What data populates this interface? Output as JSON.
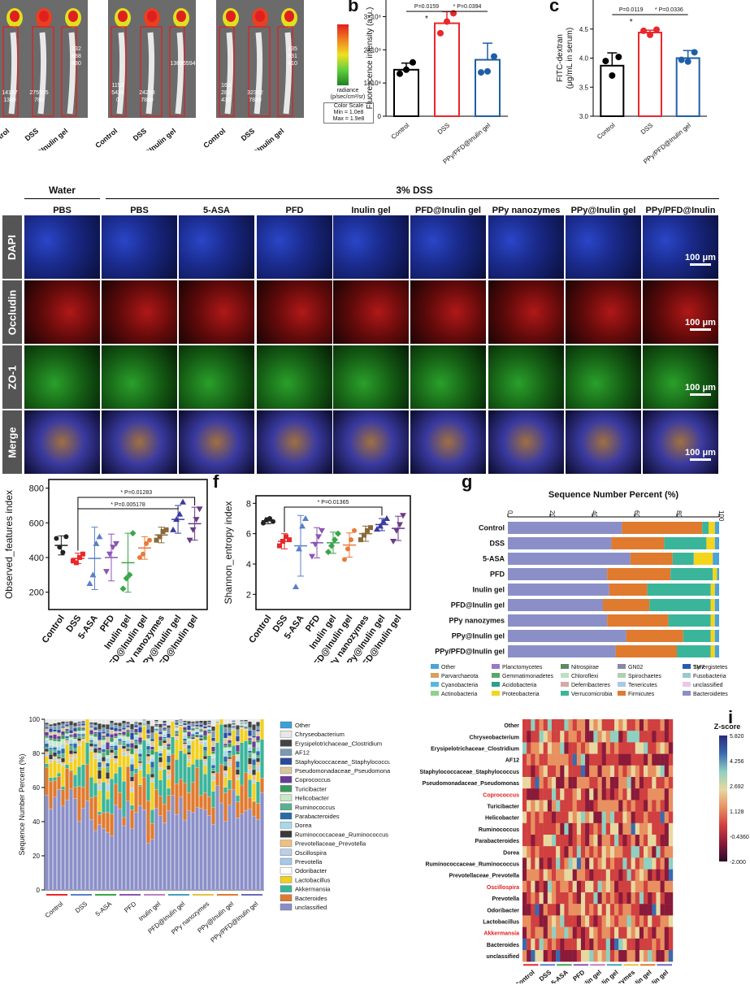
{
  "panel_a": {
    "images": [
      {
        "groups": [
          "Control",
          "DSS",
          "PPy/PFD@Inulin gel"
        ],
        "values": [
          "14197\n1380",
          "275555\n780",
          "232\n888\n880"
        ]
      },
      {
        "groups": [
          "Control",
          "DSS",
          "PPy/PFD@Inulin gel"
        ],
        "values": [
          "1152\n5426\n0",
          "24258\n7860",
          "136965940"
        ]
      },
      {
        "groups": [
          "Control",
          "DSS",
          "PPy/PFD@Inulin gel"
        ],
        "values": [
          "163\n282\n430",
          "32302\n7810",
          "135\n831\n410"
        ]
      }
    ],
    "colorbar": {
      "title": "radiance\n(p/sec/cm²/sr)",
      "scale_label": "Color Scale",
      "min": "Min = 1.0e8",
      "max": "Max = 1.9e8"
    }
  },
  "panel_labels": {
    "b": "b",
    "c": "c",
    "f": "f",
    "g": "g",
    "i": "i"
  },
  "chart_data": [
    {
      "id": "b",
      "type": "bar",
      "ylabel": "Fluorescence intensity (a.u.)",
      "categories": [
        "Control",
        "DSS",
        "PPy/PFD@Inulin gel"
      ],
      "values": [
        1.4,
        2.8,
        1.7
      ],
      "points": [
        [
          1.28,
          1.4,
          1.62
        ],
        [
          2.5,
          2.85,
          3.1
        ],
        [
          1.32,
          1.35,
          1.8
        ]
      ],
      "errors": [
        0.2,
        0.35,
        0.5
      ],
      "ylim": [
        0,
        3.5
      ],
      "yticks": [
        0,
        1,
        2,
        3
      ],
      "yticklabels": [
        "0",
        "1×10⁸",
        "2×10⁸",
        "3×10⁸"
      ],
      "colors": [
        "#000000",
        "#e8282b",
        "#1e5ea8"
      ],
      "annotations": [
        "P=0.0159",
        "*",
        "* P=0.0394"
      ]
    },
    {
      "id": "c",
      "type": "bar",
      "ylabel": "FITC-dextran\n(μg/mL in serum)",
      "categories": [
        "Control",
        "DSS",
        "PPy/PFD@Inulin gel"
      ],
      "values": [
        3.87,
        4.44,
        4.0
      ],
      "points": [
        [
          3.95,
          3.7,
          4.02
        ],
        [
          4.47,
          4.4,
          4.49
        ],
        [
          3.97,
          3.94,
          4.1
        ]
      ],
      "errors": [
        0.22,
        0.04,
        0.13
      ],
      "ylim": [
        3.0,
        5.0
      ],
      "yticks": [
        3.0,
        3.5,
        4.0,
        4.5
      ],
      "yticklabels": [
        "3.0",
        "3.5",
        "4.0",
        "4.5"
      ],
      "colors": [
        "#000000",
        "#e8282b",
        "#1e5ea8"
      ],
      "annotations": [
        "P=0.0119",
        "*",
        "* P=0.0336"
      ]
    },
    {
      "id": "e",
      "type": "scatter",
      "ylabel": "Observed_features index",
      "categories": [
        "Control",
        "DSS",
        "5-ASA",
        "PFD",
        "Inulin gel",
        "PFD@Inulin gel",
        "PPy nanozymes",
        "PPy@Inulin gel",
        "PPy/PFD@Inulin gel"
      ],
      "means": [
        470,
        395,
        395,
        400,
        370,
        455,
        530,
        620,
        595
      ],
      "sds": [
        55,
        30,
        180,
        135,
        170,
        65,
        45,
        80,
        95
      ],
      "points": [
        [
          510,
          460,
          430,
          520
        ],
        [
          380,
          370,
          400,
          420
        ],
        [
          250,
          300,
          480,
          520
        ],
        [
          320,
          420,
          460,
          480
        ],
        [
          220,
          280,
          300,
          540
        ],
        [
          400,
          420,
          480,
          500
        ],
        [
          500,
          520,
          550,
          560
        ],
        [
          560,
          620,
          650,
          720
        ],
        [
          500,
          560,
          620,
          680
        ]
      ],
      "colors": [
        "#222222",
        "#e8282b",
        "#5a7fc7",
        "#8a55b5",
        "#3aa64a",
        "#e87a3a",
        "#8a6a3a",
        "#3a3aa0",
        "#6a3a8a"
      ],
      "ylim": [
        100,
        850
      ],
      "yticks": [
        200,
        400,
        600,
        800
      ],
      "annotations": [
        "* P=0.01283",
        "* P=0.005178"
      ]
    },
    {
      "id": "f",
      "type": "scatter",
      "ylabel": "Shannon_entropy index",
      "categories": [
        "Control",
        "DSS",
        "5-ASA",
        "PFD",
        "Inulin gel",
        "PFD@Inulin gel",
        "PPy nanozymes",
        "PPy@Inulin gel",
        "PPy/PFD@Inulin gel"
      ],
      "means": [
        6.85,
        5.5,
        5.2,
        5.4,
        5.4,
        5.25,
        6.0,
        6.6,
        6.35
      ],
      "sds": [
        0.2,
        0.5,
        2.0,
        1.0,
        0.7,
        0.8,
        0.5,
        0.4,
        0.8
      ],
      "points": [
        [
          6.7,
          6.9,
          7.0,
          6.8
        ],
        [
          5.2,
          5.5,
          5.8,
          5.6
        ],
        [
          2.5,
          5.0,
          6.5,
          7.0
        ],
        [
          4.5,
          5.3,
          5.8,
          6.2
        ],
        [
          4.8,
          5.2,
          5.6,
          6.0
        ],
        [
          4.3,
          5.0,
          5.6,
          6.2
        ],
        [
          5.6,
          5.9,
          6.2,
          6.4
        ],
        [
          6.3,
          6.5,
          6.8,
          7.0
        ],
        [
          5.5,
          6.2,
          6.6,
          7.2
        ]
      ],
      "colors": [
        "#222222",
        "#e8282b",
        "#5a7fc7",
        "#8a55b5",
        "#3aa64a",
        "#e87a3a",
        "#8a6a3a",
        "#3a3aa0",
        "#6a3a8a"
      ],
      "ylim": [
        1,
        8.5
      ],
      "yticks": [
        2,
        4,
        6,
        8
      ],
      "annotations": [
        "* P=0.01365"
      ]
    },
    {
      "id": "g",
      "type": "bar",
      "orientation": "horizontal-stacked",
      "title": "Sequence Number Percent (%)",
      "categories": [
        "Control",
        "DSS",
        "5-ASA",
        "PFD",
        "Inulin gel",
        "PFD@Inulin gel",
        "PPy nanozymes",
        "PPy@Inulin gel",
        "PPy/PFD@Inulin gel"
      ],
      "xticks": [
        "0",
        "20",
        "40",
        "60",
        "80",
        "100"
      ],
      "series": [
        {
          "name": "Bacteroidetes",
          "color": "#8b8fc8",
          "values": [
            54,
            49,
            58,
            47,
            48,
            45,
            47,
            56,
            51
          ]
        },
        {
          "name": "Firmicutes",
          "color": "#e07a2e",
          "values": [
            38,
            25,
            20,
            30,
            18,
            22,
            29,
            27,
            29
          ]
        },
        {
          "name": "Verrucomicrobia",
          "color": "#3ab59a",
          "values": [
            3,
            20,
            10,
            20,
            30,
            29,
            20,
            13,
            16
          ]
        },
        {
          "name": "Proteobacteria",
          "color": "#f5d41c",
          "values": [
            3,
            4,
            9,
            2,
            2,
            2,
            2,
            2,
            2
          ]
        },
        {
          "name": "Other",
          "color": "#4aa4d8",
          "values": [
            2,
            2,
            3,
            1,
            2,
            2,
            2,
            2,
            2
          ]
        }
      ],
      "legend": [
        "Other",
        "Parvarchaeota",
        "Cyanobacteria",
        "Actinobacteria",
        "Planctomycetes",
        "Gemmatimonadetes",
        "Acidobacteria",
        "Proteobacteria",
        "Nitrospirae",
        "Chloroflexi",
        "Deferribacteres",
        "Verrucomicrobia",
        "GN02",
        "Spirochaetes",
        "Tenericutes",
        "Firmicutes",
        "Synergistetes",
        "Fusobacteria",
        "unclassified",
        "Bacteroidetes",
        "TM7"
      ],
      "legend_colors": [
        "#4aa4d8",
        "#d4a060",
        "#56b8e0",
        "#8fd08a",
        "#9a78c8",
        "#58a86a",
        "#2f9f8f",
        "#f5d41c",
        "#5f8a5f",
        "#bde0c0",
        "#d8a8a8",
        "#3ab59a",
        "#8888a8",
        "#b0d0b0",
        "#a8c8e8",
        "#e07a2e",
        "#3a58a8",
        "#9ac8d0",
        "#e8c8e8",
        "#8b8fc8",
        "#2a5ab0"
      ]
    },
    {
      "id": "h",
      "type": "bar",
      "orientation": "vertical-stacked",
      "ylabel": "Sequence Number Percent (%)",
      "categories": [
        "Control",
        "DSS",
        "5-ASA",
        "PFD",
        "Inulin gel",
        "PFD@Inulin gel",
        "PPy nanozymes",
        "PPy@Inulin gel",
        "PPy/PFD@Inulin gel"
      ],
      "yticks": [
        "0",
        "20",
        "40",
        "60",
        "80",
        "100"
      ],
      "series_names": [
        "Other",
        "Chryseobacterium",
        "Erysipelotrichaceae_Clostridium",
        "AF12",
        "Staphylococcaceae_Staphylococcus",
        "Pseudomonadaceae_Pseudomonas",
        "Coprococcus",
        "Turicibacter",
        "Helicobacter",
        "Ruminococcus",
        "Parabacteroides",
        "Dorea",
        "Ruminococcaceae_Ruminococcus",
        "Prevotellaceae_Prevotella",
        "Oscillospira",
        "Prevotella",
        "Odoribacter",
        "Lactobacillus",
        "Akkermansia",
        "Bacteroides",
        "unclassified"
      ],
      "series_colors": [
        "#3aa0d8",
        "#e8e8e8",
        "#444444",
        "#7a9ab0",
        "#2a4aa0",
        "#d8c8a0",
        "#6a3a9a",
        "#3a9a5a",
        "#c8e8c8",
        "#5ab090",
        "#2a6aa8",
        "#a8d8e8",
        "#3a3a3a",
        "#f0c080",
        "#b8d0e8",
        "#a8c8e8",
        "#ffffff",
        "#f2d020",
        "#3ab59a",
        "#e07a2e",
        "#8b8fc8"
      ],
      "unclassified_means": [
        55,
        50,
        40,
        45,
        38,
        48,
        44,
        52,
        50
      ]
    },
    {
      "id": "i",
      "type": "heatmap",
      "colorbar_title": "Z-score",
      "rows": [
        "Other",
        "Chryseobacterium",
        "Erysipelotrichaceae_Clostridium",
        "AF12",
        "Staphylococcaceae_Staphylococcus",
        "Pseudomonadaceae_Pseudomonas",
        "Coprococcus",
        "Turicibacter",
        "Helicobacter",
        "Ruminococcus",
        "Parabacteroides",
        "Dorea",
        "Ruminococcaceae_Ruminococcus",
        "Prevotellaceae_Prevotella",
        "Oscillospira",
        "Prevotella",
        "Odoribacter",
        "Lactobacillus",
        "Akkermansia",
        "Bacteroides",
        "unclassified"
      ],
      "highlight_rows": [
        "Coprococcus",
        "Oscillospira",
        "Akkermansia"
      ],
      "columns": [
        "Control",
        "DSS",
        "5-ASA",
        "PFD",
        "Inulin gel",
        "PFD@Inulin gel",
        "PPy nanozymes",
        "PPy@Inulin gel",
        "PPy/PFD@Inulin gel"
      ],
      "colorbar_ticks": [
        "5.820",
        "4.256",
        "2.692",
        "1.128",
        "-0.4360",
        "-2.000"
      ]
    }
  ],
  "panel_d": {
    "header_water": "Water",
    "header_dss": "3% DSS",
    "columns": [
      "PBS",
      "PBS",
      "5-ASA",
      "PFD",
      "Inulin gel",
      "PFD@Inulin gel",
      "PPy nanozymes",
      "PPy@Inulin gel",
      "PPy/PFD@Inulin gel"
    ],
    "rows": [
      "DAPI",
      "Occludin",
      "ZO-1",
      "Merge"
    ],
    "scale_bar": "100 μm"
  }
}
